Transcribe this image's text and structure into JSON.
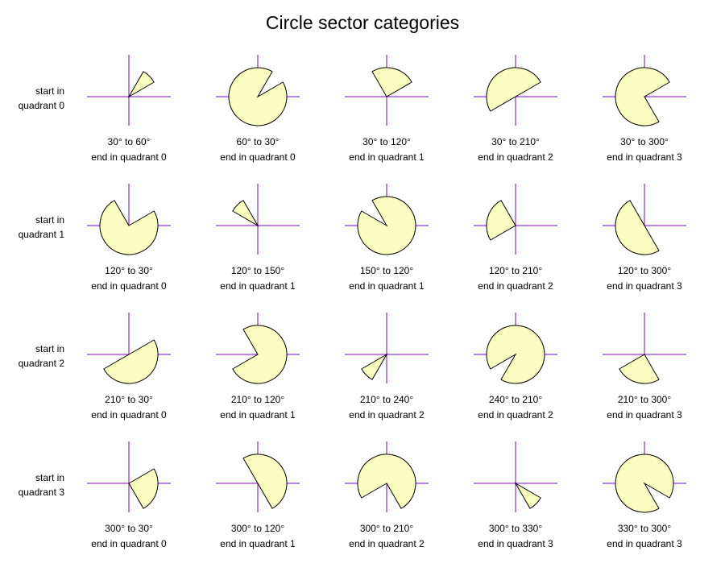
{
  "title": "Circle sector categories",
  "colors": {
    "sector_fill": "#fafcc0",
    "sector_stroke": "#000000",
    "axis": "#7a00cc"
  },
  "rows": [
    {
      "label_lines": [
        "start in",
        "quadrant 0"
      ],
      "cells": [
        {
          "start_deg": 30,
          "end_deg": 60,
          "caption": "30° to 60°",
          "subcaption": "end in quadrant 0"
        },
        {
          "start_deg": 60,
          "end_deg": 30,
          "caption": "60° to 30°",
          "subcaption": "end in quadrant 0"
        },
        {
          "start_deg": 30,
          "end_deg": 120,
          "caption": "30° to 120°",
          "subcaption": "end in quadrant 1"
        },
        {
          "start_deg": 30,
          "end_deg": 210,
          "caption": "30° to 210°",
          "subcaption": "end in quadrant 2"
        },
        {
          "start_deg": 30,
          "end_deg": 300,
          "caption": "30° to 300°",
          "subcaption": "end in quadrant 3"
        }
      ]
    },
    {
      "label_lines": [
        "start in",
        "quadrant 1"
      ],
      "cells": [
        {
          "start_deg": 120,
          "end_deg": 30,
          "caption": "120° to 30°",
          "subcaption": "end in quadrant 0"
        },
        {
          "start_deg": 120,
          "end_deg": 150,
          "caption": "120° to 150°",
          "subcaption": "end in quadrant 1"
        },
        {
          "start_deg": 150,
          "end_deg": 120,
          "caption": "150° to 120°",
          "subcaption": "end in quadrant 1"
        },
        {
          "start_deg": 120,
          "end_deg": 210,
          "caption": "120° to 210°",
          "subcaption": "end in quadrant 2"
        },
        {
          "start_deg": 120,
          "end_deg": 300,
          "caption": "120° to 300°",
          "subcaption": "end in quadrant 3"
        }
      ]
    },
    {
      "label_lines": [
        "start in",
        "quadrant 2"
      ],
      "cells": [
        {
          "start_deg": 210,
          "end_deg": 30,
          "caption": "210° to 30°",
          "subcaption": "end in quadrant 0"
        },
        {
          "start_deg": 210,
          "end_deg": 120,
          "caption": "210° to 120°",
          "subcaption": "end in quadrant 1"
        },
        {
          "start_deg": 210,
          "end_deg": 240,
          "caption": "210° to 240°",
          "subcaption": "end in quadrant 2"
        },
        {
          "start_deg": 240,
          "end_deg": 210,
          "caption": "240° to 210°",
          "subcaption": "end in quadrant 2"
        },
        {
          "start_deg": 210,
          "end_deg": 300,
          "caption": "210° to 300°",
          "subcaption": "end in quadrant 3"
        }
      ]
    },
    {
      "label_lines": [
        "start in",
        "quadrant 3"
      ],
      "cells": [
        {
          "start_deg": 300,
          "end_deg": 30,
          "caption": "300° to 30°",
          "subcaption": "end in quadrant 0"
        },
        {
          "start_deg": 300,
          "end_deg": 120,
          "caption": "300° to 120°",
          "subcaption": "end in quadrant 1"
        },
        {
          "start_deg": 300,
          "end_deg": 210,
          "caption": "300° to 210°",
          "subcaption": "end in quadrant 2"
        },
        {
          "start_deg": 300,
          "end_deg": 330,
          "caption": "300° to 330°",
          "subcaption": "end in quadrant 3"
        },
        {
          "start_deg": 330,
          "end_deg": 300,
          "caption": "330° to 300°",
          "subcaption": "end in quadrant 3"
        }
      ]
    }
  ]
}
